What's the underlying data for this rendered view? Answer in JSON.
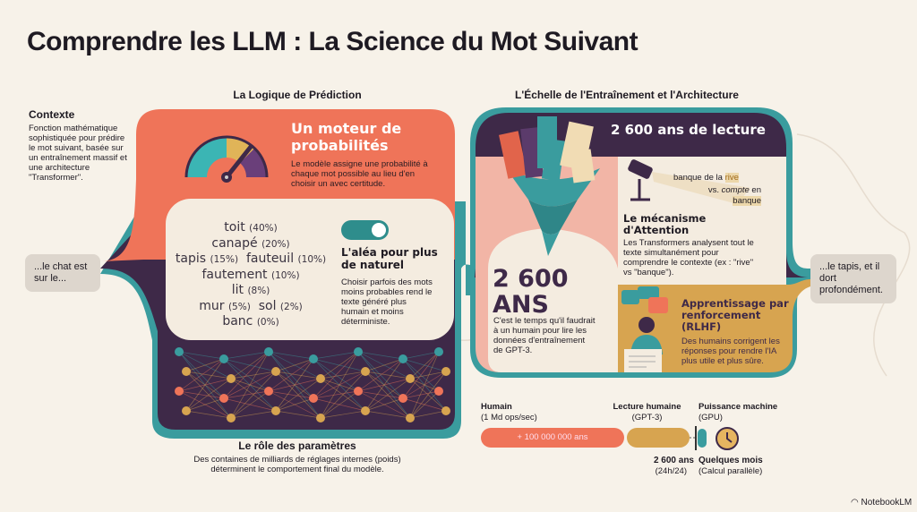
{
  "title": "Comprendre les LLM : La Science du Mot Suivant",
  "left_section": {
    "heading": "La Logique de Prédiction",
    "context": {
      "title": "Contexte",
      "text": "Fonction mathématique sophistiquée pour prédire le mot suivant, basée sur un entraînement massif et une architecture \"Transformer\"."
    },
    "input_bubble": "...le chat est sur le...",
    "engine": {
      "title": "Un moteur de probabilités",
      "text": "Le modèle assigne une probabilité à chaque mot possible au lieu d'en choisir un avec certitude.",
      "icon": "gauge-icon"
    },
    "candidates": [
      {
        "word": "toit",
        "pct": "(40%)"
      },
      {
        "word": "canapé",
        "pct": "(20%)"
      },
      {
        "word": "tapis",
        "pct": "(15%)"
      },
      {
        "word": "fauteuil",
        "pct": "(10%)"
      },
      {
        "word": "fautement",
        "pct": "(10%)"
      },
      {
        "word": "lit",
        "pct": "(8%)"
      },
      {
        "word": "mur",
        "pct": "(5%)"
      },
      {
        "word": "sol",
        "pct": "(2%)"
      },
      {
        "word": "banc",
        "pct": "(0%)"
      }
    ],
    "randomness": {
      "title": "L'aléa pour plus de naturel",
      "text": "Choisir parfois des mots moins probables rend le texte généré plus humain et moins déterministe.",
      "toggle_on": true
    },
    "params": {
      "title": "Le rôle des paramètres",
      "text": "Des containes de milliards de réglages internes (poids) déterminent le comportement final du modèle."
    }
  },
  "right_section": {
    "heading": "L'Échelle de l'Entraînement et l'Architecture",
    "band": "2 600 ans de lecture",
    "big_number": "2 600 ANS",
    "big_text": "C'est le temps qu'il faudrait à un humain pour lire les données d'entraînement de GPT-3.",
    "attention": {
      "ex1a": "banque de la",
      "ex1b": "rive",
      "ex2a": "vs.",
      "ex2b": "compte",
      "ex2c": "en",
      "ex2d": "banque",
      "title": "Le mécanisme d'Attention",
      "text": "Les Transformers analysent tout le texte simultanément pour comprendre le contexte (ex : \"rive\" vs \"banque\")."
    },
    "rlhf": {
      "title": "Apprentissage par renforcement (RLHF)",
      "text": "Des humains corrigent les réponses pour rendre l'IA plus utile et plus sûre."
    },
    "output_bubble": "...le tapis, et il dort profondément."
  },
  "comparison": {
    "human": {
      "label": "Humain",
      "sub": "(1 Md ops/sec)",
      "bar": "+ 100 000 000 ans"
    },
    "reading": {
      "label": "Lecture humaine",
      "sub": "(GPT-3)",
      "value": "2 600 ans",
      "value_sub": "(24h/24)"
    },
    "machine": {
      "label": "Puissance machine",
      "sub": "(GPU)",
      "value": "Quelques mois",
      "value_sub": "(Calcul parallèle)"
    }
  },
  "branding": "NotebookLM",
  "colors": {
    "coral": "#ef7459",
    "purple": "#3e2948",
    "teal": "#3a9c9e",
    "gold": "#d7a450",
    "cream": "#f4ece0",
    "pink": "#f2b5a6"
  }
}
